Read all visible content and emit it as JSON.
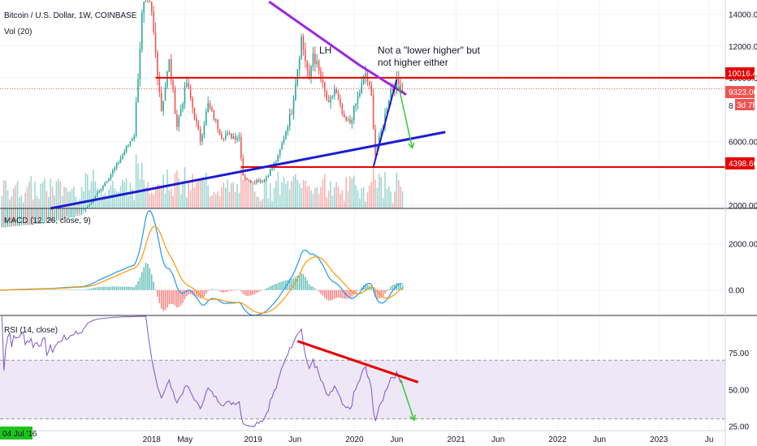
{
  "colors": {
    "up": "#26a69a",
    "down": "#ef5350",
    "macd": "#2196f3",
    "signal": "#ff9800",
    "rsi": "#7e57c2",
    "rsi_band": "#ede7f6",
    "support_line": "#e60000",
    "trend_blue": "#1c1ccf",
    "trend_purple": "#9c27e0",
    "arrow_green": "#33cc33",
    "badge_green": "#1ec31e"
  },
  "header": {
    "price_title": "Bitcoin / U.S. Dollar, 1W, COINBASE",
    "volume_title": "Vol (20)",
    "macd_title": "MACD (12, 26, close, 9)",
    "rsi_title": "RSI (14, close)"
  },
  "annotations": {
    "lh_label": "LH",
    "note_line1": "Not a \"lower higher\" but",
    "note_line2": "not higher either"
  },
  "price_badges": {
    "resistance": "10016.44",
    "current": "9323.06",
    "countdown": "3d 7h",
    "support": "4398.66",
    "partial_tick": "8"
  },
  "current_date_badge": "04 Jul '16",
  "chart_data": [
    {
      "type": "candlestick",
      "title": "Bitcoin / U.S. Dollar, 1W, COINBASE",
      "y_ticks": [
        "14000.00",
        "12000.00",
        "10000.00",
        "6000.00",
        "2000.00"
      ],
      "ylim": [
        1800,
        14800
      ],
      "x_ticks": [
        "2018",
        "May",
        "2019",
        "Jun",
        "2020",
        "Jun",
        "2021",
        "Jun",
        "2022",
        "Jun",
        "2023",
        "Ju"
      ],
      "x_tick_dates": [
        "2018-01-01",
        "2018-05-01",
        "2019-01-01",
        "2019-06-01",
        "2020-01-01",
        "2020-06-01",
        "2021-01-01",
        "2021-06-01",
        "2022-01-01",
        "2022-06-01",
        "2023-01-01",
        "2023-07-01"
      ],
      "xlim": [
        "2016-07-04",
        "2023-08-28"
      ],
      "grid": true,
      "series": [
        {
          "name": "Vol (20)",
          "kind": "volume"
        }
      ],
      "levels": [
        10016.44,
        4398.66
      ],
      "current_price": 9323.06,
      "trendlines": [
        {
          "name": "descending resistance",
          "from": [
            "2018-12-31",
            14600
          ],
          "to": [
            "2020-07-05",
            8950
          ]
        },
        {
          "name": "rising support",
          "from": [
            "2017-01-02",
            1800
          ],
          "to": [
            "2020-11-23",
            6600
          ]
        },
        {
          "name": "rise from low",
          "from": [
            "2020-03-09",
            4400
          ],
          "to": [
            "2020-06-01",
            9900
          ]
        }
      ]
    },
    {
      "type": "line",
      "title": "MACD (12, 26, close, 9)",
      "y_ticks": [
        "2000.00",
        "0.00"
      ],
      "ylim": [
        -1100,
        3500
      ],
      "series": [
        {
          "name": "MACD",
          "kind": "line"
        },
        {
          "name": "Signal",
          "kind": "line"
        },
        {
          "name": "Histogram",
          "kind": "bar"
        }
      ]
    },
    {
      "type": "line",
      "title": "RSI (14, close)",
      "y_ticks": [
        "75.00",
        "50.00",
        "25.00"
      ],
      "ylim": [
        22,
        100
      ],
      "band": [
        30,
        70
      ],
      "series": [
        {
          "name": "RSI",
          "kind": "line"
        }
      ],
      "trendlines": [
        {
          "name": "rsi divergence",
          "from": [
            "2019-06-10",
            83
          ],
          "to": [
            "2020-08-17",
            55
          ]
        }
      ]
    }
  ]
}
